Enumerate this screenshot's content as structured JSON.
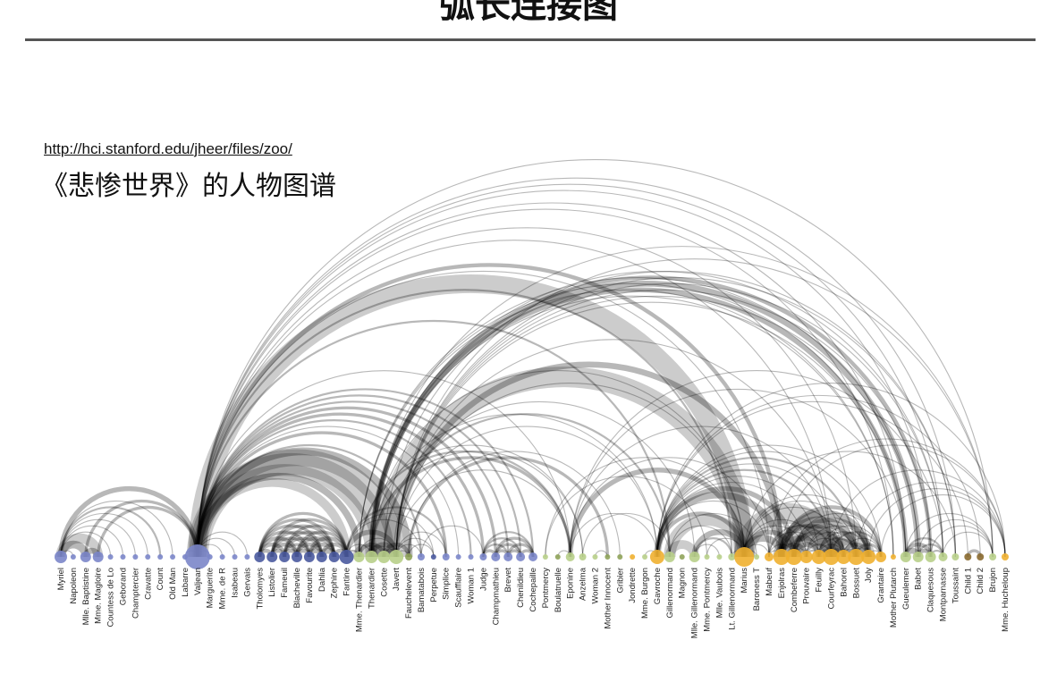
{
  "page": {
    "title": "弧长连接图"
  },
  "source": {
    "url": "http://hci.stanford.edu/jheer/files/zoo/"
  },
  "caption": "《悲惨世界》的人物图谱",
  "colors": {
    "blue_group": "#7b86c9",
    "dark_blue_group": "#4a5a9e",
    "green_group": "#b8cf8a",
    "olive_group": "#8fa35a",
    "orange_group": "#f0b030",
    "brown_group": "#8a6a30",
    "arc": "#000000"
  },
  "nodes": [
    {
      "label": "Myriel",
      "color": "blue_group",
      "size": 7
    },
    {
      "label": "Napoleon",
      "color": "blue_group",
      "size": 3
    },
    {
      "label": "Mlle. Baptistine",
      "color": "blue_group",
      "size": 6
    },
    {
      "label": "Mme. Magloire",
      "color": "blue_group",
      "size": 6
    },
    {
      "label": "Countess de Lo",
      "color": "blue_group",
      "size": 3
    },
    {
      "label": "Geborand",
      "color": "blue_group",
      "size": 3
    },
    {
      "label": "Champtercier",
      "color": "blue_group",
      "size": 3
    },
    {
      "label": "Cravatte",
      "color": "blue_group",
      "size": 3
    },
    {
      "label": "Count",
      "color": "blue_group",
      "size": 3
    },
    {
      "label": "Old Man",
      "color": "blue_group",
      "size": 3
    },
    {
      "label": "Labarre",
      "color": "blue_group",
      "size": 3
    },
    {
      "label": "Valjean",
      "color": "blue_group",
      "size": 14
    },
    {
      "label": "Marguerite",
      "color": "blue_group",
      "size": 3
    },
    {
      "label": "Mme. de R",
      "color": "blue_group",
      "size": 3
    },
    {
      "label": "Isabeau",
      "color": "blue_group",
      "size": 3
    },
    {
      "label": "Gervais",
      "color": "blue_group",
      "size": 3
    },
    {
      "label": "Tholomyes",
      "color": "dark_blue_group",
      "size": 6
    },
    {
      "label": "Listolier",
      "color": "dark_blue_group",
      "size": 6
    },
    {
      "label": "Fameuil",
      "color": "dark_blue_group",
      "size": 6
    },
    {
      "label": "Blacheville",
      "color": "dark_blue_group",
      "size": 6
    },
    {
      "label": "Favourite",
      "color": "dark_blue_group",
      "size": 6
    },
    {
      "label": "Dahlia",
      "color": "dark_blue_group",
      "size": 6
    },
    {
      "label": "Zephine",
      "color": "dark_blue_group",
      "size": 6
    },
    {
      "label": "Fantine",
      "color": "dark_blue_group",
      "size": 8
    },
    {
      "label": "Mme. Thenardier",
      "color": "green_group",
      "size": 6
    },
    {
      "label": "Thenardier",
      "color": "green_group",
      "size": 7
    },
    {
      "label": "Cosette",
      "color": "green_group",
      "size": 7
    },
    {
      "label": "Javert",
      "color": "green_group",
      "size": 8
    },
    {
      "label": "Fauchelevent",
      "color": "olive_group",
      "size": 4
    },
    {
      "label": "Bamatabois",
      "color": "blue_group",
      "size": 4
    },
    {
      "label": "Perpetue",
      "color": "dark_blue_group",
      "size": 3
    },
    {
      "label": "Simplice",
      "color": "blue_group",
      "size": 4
    },
    {
      "label": "Scaufflaire",
      "color": "blue_group",
      "size": 3
    },
    {
      "label": "Woman 1",
      "color": "blue_group",
      "size": 3
    },
    {
      "label": "Judge",
      "color": "blue_group",
      "size": 4
    },
    {
      "label": "Champmathieu",
      "color": "blue_group",
      "size": 5
    },
    {
      "label": "Brevet",
      "color": "blue_group",
      "size": 5
    },
    {
      "label": "Chenildieu",
      "color": "blue_group",
      "size": 5
    },
    {
      "label": "Cochepaille",
      "color": "blue_group",
      "size": 5
    },
    {
      "label": "Pontmercy",
      "color": "green_group",
      "size": 3
    },
    {
      "label": "Boulatruelle",
      "color": "olive_group",
      "size": 3
    },
    {
      "label": "Eponine",
      "color": "green_group",
      "size": 5
    },
    {
      "label": "Anzelma",
      "color": "green_group",
      "size": 4
    },
    {
      "label": "Woman 2",
      "color": "green_group",
      "size": 3
    },
    {
      "label": "Mother Innocent",
      "color": "olive_group",
      "size": 3
    },
    {
      "label": "Gribier",
      "color": "olive_group",
      "size": 3
    },
    {
      "label": "Jondrette",
      "color": "orange_group",
      "size": 3
    },
    {
      "label": "Mme. Burgon",
      "color": "green_group",
      "size": 3
    },
    {
      "label": "Gavroche",
      "color": "orange_group",
      "size": 8
    },
    {
      "label": "Gillenormand",
      "color": "green_group",
      "size": 6
    },
    {
      "label": "Magnon",
      "color": "olive_group",
      "size": 3
    },
    {
      "label": "Mlle. Gillenormand",
      "color": "green_group",
      "size": 6
    },
    {
      "label": "Mme. Pontmercy",
      "color": "green_group",
      "size": 3
    },
    {
      "label": "Mlle. Vaubois",
      "color": "green_group",
      "size": 3
    },
    {
      "label": "Lt. Gillenormand",
      "color": "green_group",
      "size": 4
    },
    {
      "label": "Marius",
      "color": "orange_group",
      "size": 11
    },
    {
      "label": "Baroness T",
      "color": "green_group",
      "size": 3
    },
    {
      "label": "Mabeuf",
      "color": "orange_group",
      "size": 5
    },
    {
      "label": "Enjolras",
      "color": "orange_group",
      "size": 9
    },
    {
      "label": "Combeferre",
      "color": "orange_group",
      "size": 9
    },
    {
      "label": "Prouvaire",
      "color": "orange_group",
      "size": 7
    },
    {
      "label": "Feuilly",
      "color": "orange_group",
      "size": 8
    },
    {
      "label": "Courfeyrac",
      "color": "orange_group",
      "size": 9
    },
    {
      "label": "Bahorel",
      "color": "orange_group",
      "size": 8
    },
    {
      "label": "Bossuet",
      "color": "orange_group",
      "size": 9
    },
    {
      "label": "Joly",
      "color": "orange_group",
      "size": 8
    },
    {
      "label": "Grantaire",
      "color": "orange_group",
      "size": 6
    },
    {
      "label": "Mother Plutarch",
      "color": "orange_group",
      "size": 3
    },
    {
      "label": "Gueulemer",
      "color": "green_group",
      "size": 6
    },
    {
      "label": "Babet",
      "color": "green_group",
      "size": 6
    },
    {
      "label": "Claquesous",
      "color": "green_group",
      "size": 6
    },
    {
      "label": "Montparnasse",
      "color": "green_group",
      "size": 5
    },
    {
      "label": "Toussaint",
      "color": "green_group",
      "size": 4
    },
    {
      "label": "Child 1",
      "color": "brown_group",
      "size": 4
    },
    {
      "label": "Child 2",
      "color": "brown_group",
      "size": 4
    },
    {
      "label": "Brujon",
      "color": "green_group",
      "size": 4
    },
    {
      "label": "Mme. Hucheloup",
      "color": "orange_group",
      "size": 4
    }
  ],
  "links": [
    [
      0,
      1,
      1
    ],
    [
      0,
      2,
      8
    ],
    [
      0,
      3,
      10
    ],
    [
      0,
      4,
      1
    ],
    [
      0,
      5,
      1
    ],
    [
      0,
      6,
      1
    ],
    [
      0,
      7,
      1
    ],
    [
      0,
      8,
      2
    ],
    [
      0,
      9,
      1
    ],
    [
      0,
      11,
      5
    ],
    [
      2,
      3,
      6
    ],
    [
      3,
      11,
      3
    ],
    [
      2,
      11,
      3
    ],
    [
      10,
      11,
      1
    ],
    [
      11,
      12,
      1
    ],
    [
      11,
      13,
      1
    ],
    [
      11,
      14,
      1
    ],
    [
      11,
      15,
      1
    ],
    [
      11,
      23,
      9
    ],
    [
      11,
      24,
      7
    ],
    [
      11,
      25,
      12
    ],
    [
      11,
      26,
      31
    ],
    [
      11,
      27,
      17
    ],
    [
      11,
      28,
      8
    ],
    [
      11,
      29,
      2
    ],
    [
      11,
      31,
      3
    ],
    [
      11,
      32,
      1
    ],
    [
      11,
      33,
      2
    ],
    [
      11,
      34,
      3
    ],
    [
      11,
      35,
      3
    ],
    [
      11,
      36,
      2
    ],
    [
      11,
      37,
      2
    ],
    [
      11,
      38,
      2
    ],
    [
      11,
      41,
      1
    ],
    [
      11,
      49,
      2
    ],
    [
      11,
      54,
      2
    ],
    [
      11,
      55,
      19
    ],
    [
      11,
      57,
      1
    ],
    [
      11,
      58,
      4
    ],
    [
      11,
      62,
      1
    ],
    [
      11,
      64,
      1
    ],
    [
      11,
      68,
      1
    ],
    [
      11,
      70,
      1
    ],
    [
      11,
      71,
      1
    ],
    [
      11,
      72,
      1
    ],
    [
      11,
      75,
      1
    ],
    [
      16,
      17,
      4
    ],
    [
      16,
      18,
      4
    ],
    [
      16,
      19,
      4
    ],
    [
      16,
      20,
      3
    ],
    [
      16,
      21,
      3
    ],
    [
      16,
      22,
      3
    ],
    [
      16,
      23,
      3
    ],
    [
      17,
      18,
      4
    ],
    [
      17,
      19,
      4
    ],
    [
      17,
      20,
      3
    ],
    [
      17,
      21,
      3
    ],
    [
      17,
      22,
      3
    ],
    [
      17,
      23,
      3
    ],
    [
      18,
      19,
      4
    ],
    [
      18,
      20,
      3
    ],
    [
      18,
      21,
      3
    ],
    [
      18,
      22,
      3
    ],
    [
      18,
      23,
      3
    ],
    [
      19,
      20,
      4
    ],
    [
      19,
      21,
      4
    ],
    [
      19,
      22,
      4
    ],
    [
      19,
      23,
      3
    ],
    [
      20,
      21,
      5
    ],
    [
      20,
      22,
      4
    ],
    [
      20,
      23,
      4
    ],
    [
      21,
      22,
      6
    ],
    [
      21,
      23,
      4
    ],
    [
      22,
      23,
      4
    ],
    [
      23,
      24,
      2
    ],
    [
      23,
      25,
      1
    ],
    [
      23,
      27,
      5
    ],
    [
      23,
      29,
      1
    ],
    [
      23,
      30,
      1
    ],
    [
      23,
      31,
      2
    ],
    [
      24,
      25,
      13
    ],
    [
      24,
      26,
      4
    ],
    [
      24,
      27,
      1
    ],
    [
      24,
      41,
      2
    ],
    [
      24,
      42,
      1
    ],
    [
      24,
      68,
      1
    ],
    [
      24,
      69,
      1
    ],
    [
      25,
      26,
      12
    ],
    [
      25,
      27,
      5
    ],
    [
      25,
      41,
      3
    ],
    [
      25,
      42,
      1
    ],
    [
      25,
      48,
      1
    ],
    [
      25,
      55,
      1
    ],
    [
      25,
      68,
      5
    ],
    [
      25,
      69,
      6
    ],
    [
      25,
      70,
      4
    ],
    [
      25,
      71,
      1
    ],
    [
      25,
      75,
      1
    ],
    [
      26,
      27,
      4
    ],
    [
      26,
      28,
      4
    ],
    [
      26,
      49,
      2
    ],
    [
      26,
      51,
      1
    ],
    [
      26,
      55,
      21
    ],
    [
      26,
      72,
      1
    ],
    [
      27,
      28,
      1
    ],
    [
      27,
      29,
      1
    ],
    [
      27,
      30,
      1
    ],
    [
      27,
      31,
      1
    ],
    [
      27,
      41,
      1
    ],
    [
      27,
      48,
      1
    ],
    [
      27,
      55,
      1
    ],
    [
      27,
      58,
      6
    ],
    [
      27,
      62,
      1
    ],
    [
      27,
      68,
      1
    ],
    [
      27,
      69,
      1
    ],
    [
      27,
      70,
      1
    ],
    [
      27,
      71,
      1
    ],
    [
      27,
      72,
      1
    ],
    [
      27,
      75,
      1
    ],
    [
      28,
      44,
      3
    ],
    [
      28,
      45,
      1
    ],
    [
      28,
      30,
      1
    ],
    [
      29,
      34,
      1
    ],
    [
      34,
      35,
      3
    ],
    [
      34,
      36,
      2
    ],
    [
      34,
      37,
      2
    ],
    [
      34,
      38,
      2
    ],
    [
      35,
      36,
      3
    ],
    [
      35,
      37,
      3
    ],
    [
      35,
      38,
      3
    ],
    [
      36,
      37,
      3
    ],
    [
      36,
      38,
      3
    ],
    [
      37,
      38,
      3
    ],
    [
      39,
      52,
      1
    ],
    [
      39,
      55,
      1
    ],
    [
      40,
      41,
      1
    ],
    [
      41,
      55,
      5
    ],
    [
      41,
      48,
      1
    ],
    [
      41,
      57,
      1
    ],
    [
      41,
      62,
      1
    ],
    [
      41,
      68,
      1
    ],
    [
      41,
      71,
      1
    ],
    [
      42,
      49,
      1
    ],
    [
      43,
      44,
      1
    ],
    [
      47,
      48,
      1
    ],
    [
      48,
      55,
      4
    ],
    [
      48,
      57,
      1
    ],
    [
      48,
      58,
      7
    ],
    [
      48,
      59,
      5
    ],
    [
      48,
      60,
      1
    ],
    [
      48,
      61,
      1
    ],
    [
      48,
      62,
      2
    ],
    [
      48,
      63,
      1
    ],
    [
      48,
      64,
      2
    ],
    [
      48,
      65,
      1
    ],
    [
      48,
      66,
      1
    ],
    [
      48,
      76,
      1
    ],
    [
      49,
      51,
      9
    ],
    [
      49,
      54,
      1
    ],
    [
      49,
      55,
      12
    ],
    [
      49,
      56,
      1
    ],
    [
      51,
      55,
      6
    ],
    [
      51,
      54,
      2
    ],
    [
      51,
      53,
      1
    ],
    [
      52,
      55,
      1
    ],
    [
      54,
      55,
      1
    ],
    [
      55,
      56,
      1
    ],
    [
      55,
      57,
      1
    ],
    [
      55,
      58,
      7
    ],
    [
      55,
      59,
      5
    ],
    [
      55,
      60,
      1
    ],
    [
      55,
      61,
      1
    ],
    [
      55,
      62,
      21
    ],
    [
      55,
      63,
      1
    ],
    [
      55,
      64,
      1
    ],
    [
      55,
      65,
      1
    ],
    [
      55,
      72,
      1
    ],
    [
      57,
      58,
      1
    ],
    [
      57,
      59,
      1
    ],
    [
      57,
      61,
      1
    ],
    [
      57,
      62,
      2
    ],
    [
      57,
      76,
      1
    ],
    [
      58,
      59,
      15
    ],
    [
      58,
      60,
      4
    ],
    [
      58,
      61,
      6
    ],
    [
      58,
      62,
      17
    ],
    [
      58,
      63,
      4
    ],
    [
      58,
      64,
      7
    ],
    [
      58,
      65,
      7
    ],
    [
      58,
      66,
      4
    ],
    [
      58,
      76,
      1
    ],
    [
      59,
      60,
      5
    ],
    [
      59,
      61,
      5
    ],
    [
      59,
      62,
      13
    ],
    [
      59,
      63,
      5
    ],
    [
      59,
      64,
      5
    ],
    [
      59,
      65,
      5
    ],
    [
      59,
      66,
      1
    ],
    [
      60,
      61,
      2
    ],
    [
      60,
      62,
      2
    ],
    [
      60,
      63,
      1
    ],
    [
      60,
      64,
      1
    ],
    [
      60,
      65,
      1
    ],
    [
      61,
      62,
      3
    ],
    [
      61,
      63,
      1
    ],
    [
      61,
      64,
      2
    ],
    [
      61,
      65,
      2
    ],
    [
      61,
      66,
      1
    ],
    [
      62,
      63,
      5
    ],
    [
      62,
      64,
      12
    ],
    [
      62,
      65,
      13
    ],
    [
      62,
      66,
      2
    ],
    [
      62,
      76,
      1
    ],
    [
      63,
      64,
      4
    ],
    [
      63,
      65,
      4
    ],
    [
      63,
      66,
      1
    ],
    [
      64,
      65,
      7
    ],
    [
      64,
      66,
      3
    ],
    [
      64,
      76,
      1
    ],
    [
      65,
      66,
      1
    ],
    [
      65,
      76,
      1
    ],
    [
      66,
      76,
      1
    ],
    [
      68,
      69,
      6
    ],
    [
      68,
      70,
      4
    ],
    [
      68,
      71,
      2
    ],
    [
      68,
      75,
      1
    ],
    [
      69,
      70,
      4
    ],
    [
      69,
      71,
      2
    ],
    [
      69,
      75,
      1
    ],
    [
      70,
      71,
      2
    ],
    [
      70,
      75,
      1
    ],
    [
      71,
      75,
      1
    ],
    [
      73,
      74,
      3
    ],
    [
      48,
      73,
      1
    ],
    [
      48,
      74,
      1
    ],
    [
      25,
      67,
      1
    ],
    [
      24,
      67,
      1
    ],
    [
      11,
      67,
      1
    ]
  ]
}
